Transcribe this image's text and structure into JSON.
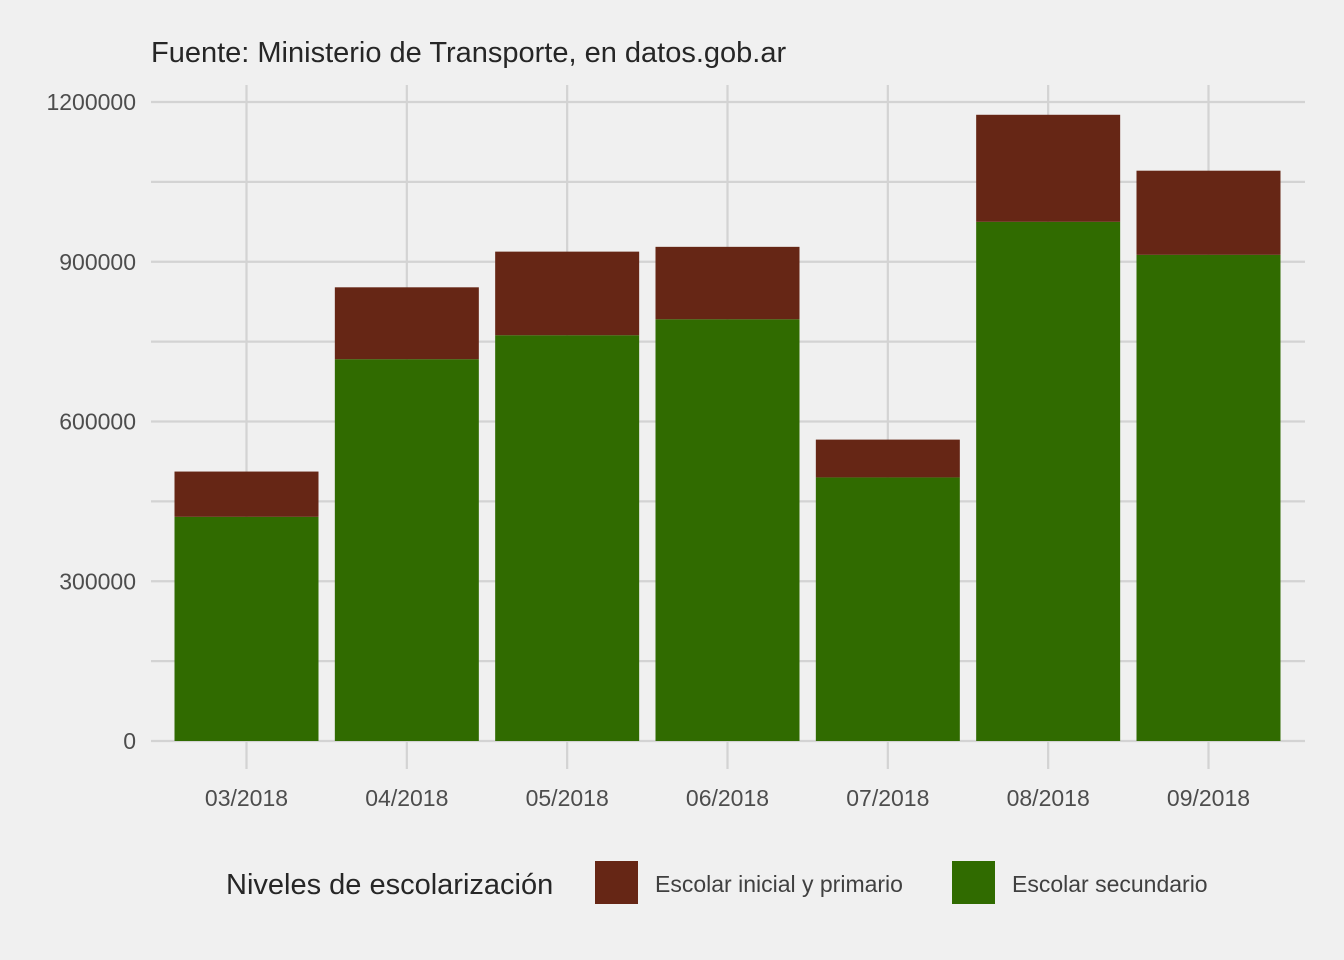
{
  "chart_data": {
    "type": "bar",
    "stacked": true,
    "subtitle": "Fuente: Ministerio de Transporte, en datos.gob.ar",
    "categories": [
      "03/2018",
      "04/2018",
      "05/2018",
      "06/2018",
      "07/2018",
      "08/2018",
      "09/2018"
    ],
    "series": [
      {
        "name": "Escolar secundario",
        "color": "#306b00",
        "values": [
          421000,
          717000,
          762000,
          792000,
          495000,
          975000,
          913000
        ]
      },
      {
        "name": "Escolar inicial y primario",
        "color": "#662615",
        "values": [
          85000,
          135000,
          157000,
          136000,
          71000,
          201000,
          158000
        ]
      }
    ],
    "ylim": [
      0,
      1200000
    ],
    "yticks": [
      0,
      300000,
      600000,
      900000,
      1200000
    ],
    "ytick_labels": [
      "0",
      "300000",
      "600000",
      "900000",
      "1200000"
    ],
    "grid": true,
    "legend": {
      "title": "Niveles de escolarización",
      "position": "bottom",
      "items": [
        {
          "label": "Escolar inicial y primario",
          "color": "#662615"
        },
        {
          "label": "Escolar secundario",
          "color": "#306b00"
        }
      ]
    }
  }
}
